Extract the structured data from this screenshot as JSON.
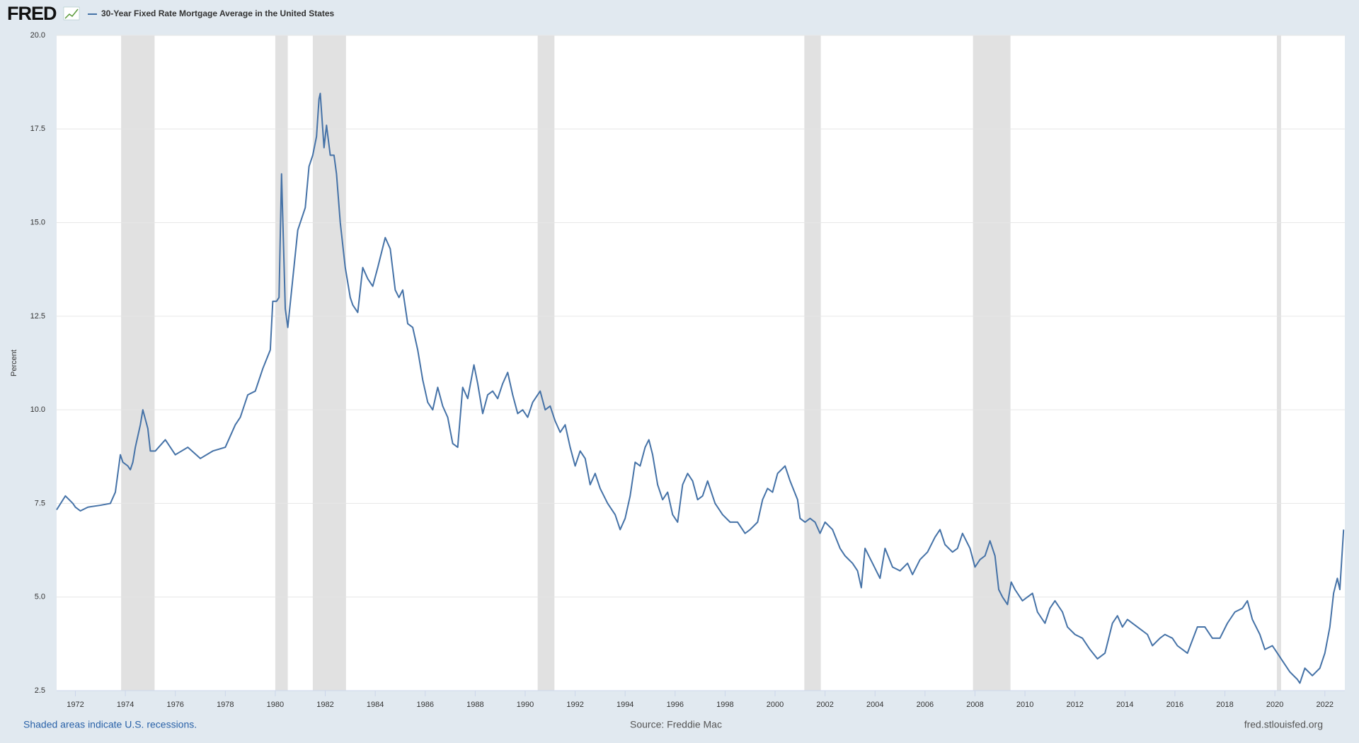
{
  "chart_data": {
    "type": "line",
    "brand": "FRED",
    "title": "30-Year Fixed Rate Mortgage Average in the United States",
    "ylabel": "Percent",
    "note": "Shaded areas indicate U.S. recessions.",
    "source": "Source: Freddie Mac",
    "site": "fred.stlouisfed.org",
    "xlim": [
      1971.25,
      2022.8
    ],
    "xticks": [
      1972,
      1974,
      1976,
      1978,
      1980,
      1982,
      1984,
      1986,
      1988,
      1990,
      1992,
      1994,
      1996,
      1998,
      2000,
      2002,
      2004,
      2006,
      2008,
      2010,
      2012,
      2014,
      2016,
      2018,
      2020,
      2022
    ],
    "ylim": [
      2.5,
      20
    ],
    "yticks": [
      2.5,
      {
        "value": 5,
        "label": "5.0"
      },
      7.5,
      {
        "value": 10,
        "label": "10.0"
      },
      12.5,
      {
        "value": 15,
        "label": "15.0"
      },
      17.5,
      {
        "value": 20,
        "label": "20.0"
      }
    ],
    "grid": true,
    "recession_color": "#e1e1e1",
    "recessions": [
      [
        1973.83,
        1975.17
      ],
      [
        1980.0,
        1980.5
      ],
      [
        1981.5,
        1982.83
      ],
      [
        1990.5,
        1991.17
      ],
      [
        2001.17,
        2001.83
      ],
      [
        2007.92,
        2009.42
      ],
      [
        2020.08,
        2020.25
      ]
    ],
    "x": [
      1971.25,
      1971.6,
      1971.9,
      1972.0,
      1972.2,
      1972.5,
      1973.0,
      1973.4,
      1973.6,
      1973.8,
      1973.9,
      1974.1,
      1974.2,
      1974.3,
      1974.4,
      1974.6,
      1974.7,
      1974.9,
      1975.0,
      1975.2,
      1975.6,
      1976.0,
      1976.5,
      1977.0,
      1977.5,
      1978.0,
      1978.4,
      1978.6,
      1978.9,
      1979.2,
      1979.5,
      1979.8,
      1979.9,
      1980.05,
      1980.15,
      1980.25,
      1980.4,
      1980.5,
      1980.7,
      1980.9,
      1981.2,
      1981.35,
      1981.5,
      1981.65,
      1981.75,
      1981.8,
      1981.95,
      1982.05,
      1982.2,
      1982.35,
      1982.45,
      1982.6,
      1982.8,
      1983.0,
      1983.1,
      1983.3,
      1983.5,
      1983.7,
      1983.9,
      1984.1,
      1984.4,
      1984.6,
      1984.8,
      1984.95,
      1985.1,
      1985.3,
      1985.5,
      1985.7,
      1985.9,
      1986.1,
      1986.3,
      1986.5,
      1986.7,
      1986.9,
      1987.1,
      1987.3,
      1987.5,
      1987.7,
      1987.95,
      1988.1,
      1988.3,
      1988.5,
      1988.7,
      1988.9,
      1989.1,
      1989.3,
      1989.5,
      1989.7,
      1989.9,
      1990.1,
      1990.3,
      1990.6,
      1990.8,
      1991.0,
      1991.2,
      1991.4,
      1991.6,
      1991.8,
      1992.0,
      1992.2,
      1992.4,
      1992.6,
      1992.8,
      1993.0,
      1993.3,
      1993.6,
      1993.8,
      1994.0,
      1994.2,
      1994.4,
      1994.6,
      1994.8,
      1994.95,
      1995.1,
      1995.3,
      1995.5,
      1995.7,
      1995.9,
      1996.1,
      1996.3,
      1996.5,
      1996.7,
      1996.9,
      1997.1,
      1997.3,
      1997.6,
      1997.9,
      1998.2,
      1998.5,
      1998.8,
      1999.0,
      1999.3,
      1999.5,
      1999.7,
      1999.9,
      2000.1,
      2000.4,
      2000.6,
      2000.9,
      2001.0,
      2001.2,
      2001.4,
      2001.6,
      2001.8,
      2002.0,
      2002.3,
      2002.6,
      2002.8,
      2003.1,
      2003.3,
      2003.45,
      2003.6,
      2003.9,
      2004.2,
      2004.4,
      2004.7,
      2005.0,
      2005.3,
      2005.5,
      2005.8,
      2006.1,
      2006.4,
      2006.6,
      2006.8,
      2007.1,
      2007.3,
      2007.5,
      2007.8,
      2008.0,
      2008.2,
      2008.4,
      2008.6,
      2008.8,
      2008.95,
      2009.1,
      2009.3,
      2009.45,
      2009.6,
      2009.9,
      2010.1,
      2010.3,
      2010.5,
      2010.8,
      2011.0,
      2011.2,
      2011.5,
      2011.7,
      2012.0,
      2012.3,
      2012.6,
      2012.9,
      2013.2,
      2013.5,
      2013.7,
      2013.9,
      2014.1,
      2014.5,
      2014.9,
      2015.1,
      2015.4,
      2015.6,
      2015.9,
      2016.1,
      2016.5,
      2016.9,
      2017.2,
      2017.5,
      2017.8,
      2018.1,
      2018.4,
      2018.7,
      2018.9,
      2019.1,
      2019.4,
      2019.6,
      2019.9,
      2020.1,
      2020.3,
      2020.6,
      2020.9,
      2021.0,
      2021.2,
      2021.5,
      2021.8,
      2022.0,
      2022.2,
      2022.35,
      2022.5,
      2022.6,
      2022.75
    ],
    "series": [
      {
        "name": "30-Year Fixed Rate Mortgage Average in the United States",
        "color": "#4572a7",
        "values": [
          7.33,
          7.7,
          7.5,
          7.4,
          7.3,
          7.4,
          7.45,
          7.5,
          7.8,
          8.8,
          8.6,
          8.5,
          8.4,
          8.6,
          9.0,
          9.6,
          10.0,
          9.5,
          8.9,
          8.9,
          9.2,
          8.8,
          9.0,
          8.7,
          8.9,
          9.0,
          9.6,
          9.8,
          10.4,
          10.5,
          11.1,
          11.6,
          12.9,
          12.9,
          13.0,
          16.3,
          12.7,
          12.2,
          13.5,
          14.8,
          15.4,
          16.5,
          16.8,
          17.3,
          18.3,
          18.45,
          17.0,
          17.6,
          16.8,
          16.8,
          16.3,
          15.0,
          13.8,
          13.0,
          12.8,
          12.6,
          13.8,
          13.5,
          13.3,
          13.8,
          14.6,
          14.3,
          13.2,
          13.0,
          13.2,
          12.3,
          12.2,
          11.6,
          10.8,
          10.2,
          10.0,
          10.6,
          10.1,
          9.8,
          9.1,
          9.0,
          10.6,
          10.3,
          11.2,
          10.7,
          9.9,
          10.4,
          10.5,
          10.3,
          10.7,
          11.0,
          10.4,
          9.9,
          10.0,
          9.8,
          10.2,
          10.5,
          10.0,
          10.1,
          9.7,
          9.4,
          9.6,
          9.0,
          8.5,
          8.9,
          8.7,
          8.0,
          8.3,
          7.9,
          7.5,
          7.2,
          6.8,
          7.1,
          7.7,
          8.6,
          8.5,
          9.0,
          9.2,
          8.8,
          8.0,
          7.6,
          7.8,
          7.2,
          7.0,
          8.0,
          8.3,
          8.1,
          7.6,
          7.7,
          8.1,
          7.5,
          7.2,
          7.0,
          7.0,
          6.7,
          6.8,
          7.0,
          7.6,
          7.9,
          7.8,
          8.3,
          8.5,
          8.1,
          7.6,
          7.1,
          7.0,
          7.1,
          7.0,
          6.7,
          7.0,
          6.8,
          6.3,
          6.1,
          5.9,
          5.7,
          5.25,
          6.3,
          5.9,
          5.5,
          6.3,
          5.8,
          5.7,
          5.9,
          5.6,
          6.0,
          6.2,
          6.6,
          6.8,
          6.4,
          6.2,
          6.3,
          6.7,
          6.3,
          5.8,
          6.0,
          6.1,
          6.5,
          6.1,
          5.2,
          5.0,
          4.8,
          5.4,
          5.2,
          4.9,
          5.0,
          5.1,
          4.6,
          4.3,
          4.7,
          4.9,
          4.6,
          4.2,
          4.0,
          3.9,
          3.6,
          3.35,
          3.5,
          4.3,
          4.5,
          4.2,
          4.4,
          4.2,
          4.0,
          3.7,
          3.9,
          4.0,
          3.9,
          3.7,
          3.5,
          4.2,
          4.2,
          3.9,
          3.9,
          4.3,
          4.6,
          4.7,
          4.9,
          4.4,
          4.0,
          3.6,
          3.7,
          3.5,
          3.3,
          3.0,
          2.8,
          2.7,
          3.1,
          2.9,
          3.1,
          3.5,
          4.2,
          5.1,
          5.5,
          5.2,
          6.8
        ]
      }
    ]
  }
}
